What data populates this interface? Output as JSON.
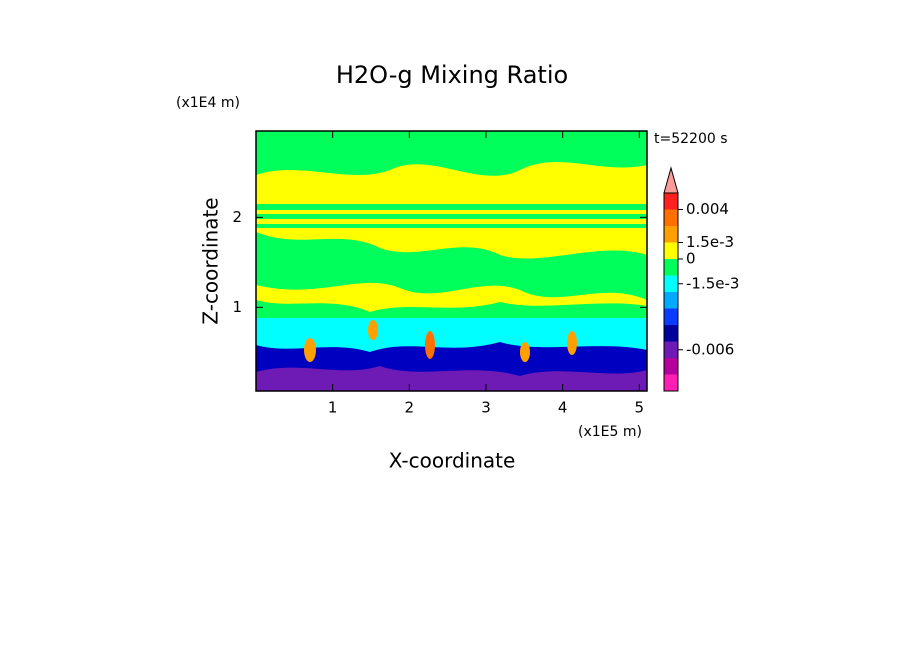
{
  "chart_data": {
    "type": "contour",
    "title": "H2O-g Mixing Ratio",
    "x_label": "X-coordinate",
    "y_label": "Z-coordinate",
    "x_multiplier": "(x1E5 m)",
    "y_multiplier": "(x1E4 m)",
    "time_label": "t=52200 s",
    "xlim": [
      0,
      5.1
    ],
    "xticks": [
      1,
      2,
      3,
      4,
      5
    ],
    "ylim": [
      0.07,
      2.96
    ],
    "yticks": [
      1,
      2
    ],
    "colorbar": {
      "colors": [
        "#ff1fb4",
        "#b4009c",
        "#6e1ab4",
        "#00009c",
        "#0a3cff",
        "#00aaff",
        "#00ffff",
        "#00ff5a",
        "#ffff00",
        "#ffa000",
        "#ff7000",
        "#ff2020",
        "#ff9a9a"
      ],
      "ticks": [
        {
          "value": 0.004,
          "label": "0.004"
        },
        {
          "value": 0.0015,
          "label": "1.5e-3"
        },
        {
          "value": 0,
          "label": "0"
        },
        {
          "value": -0.0015,
          "label": "-1.5e-3"
        },
        {
          "value": -0.006,
          "label": "-0.006"
        }
      ]
    }
  }
}
